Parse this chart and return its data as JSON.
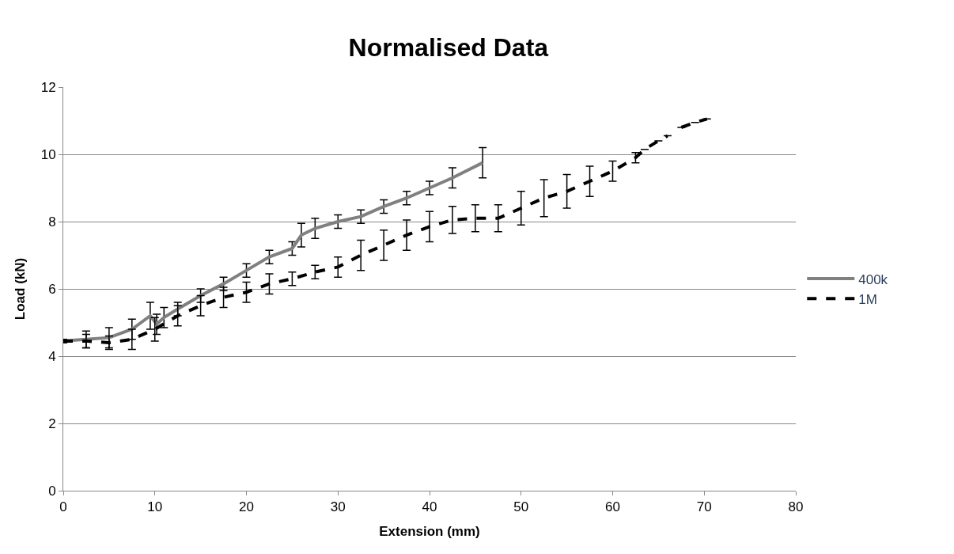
{
  "chart_data": {
    "type": "line",
    "title": "Normalised Data",
    "xlabel": "Extension (mm)",
    "ylabel": "Load (kN)",
    "xlim": [
      0,
      80
    ],
    "xticks": [
      0,
      10,
      20,
      30,
      40,
      50,
      60,
      70,
      80
    ],
    "ylim": [
      0,
      12
    ],
    "yticks": [
      0,
      2,
      4,
      6,
      8,
      10,
      12
    ],
    "grid": "y",
    "legend": "right",
    "marker": "none",
    "series": [
      {
        "name": "400k",
        "color": "#808080",
        "line_style": "solid",
        "x": [
          0,
          2.5,
          5,
          7.5,
          9.5,
          10.2,
          11,
          12.5,
          15,
          17.5,
          20,
          22.5,
          25,
          26,
          27.5,
          30,
          32.5,
          35,
          37.5,
          40,
          42.5,
          45.8
        ],
        "values": [
          4.45,
          4.5,
          4.55,
          4.8,
          5.2,
          4.95,
          5.15,
          5.4,
          5.8,
          6.15,
          6.55,
          6.95,
          7.2,
          7.6,
          7.8,
          8.0,
          8.15,
          8.45,
          8.7,
          9.0,
          9.3,
          9.75
        ],
        "errors": [
          0.05,
          0.25,
          0.3,
          0.3,
          0.4,
          0.3,
          0.3,
          0.2,
          0.2,
          0.2,
          0.2,
          0.2,
          0.2,
          0.35,
          0.3,
          0.2,
          0.2,
          0.2,
          0.2,
          0.2,
          0.3,
          0.45
        ]
      },
      {
        "name": "1M",
        "color": "#000000",
        "line_style": "dashed",
        "x": [
          0,
          2.5,
          5,
          7.5,
          10,
          12.5,
          15,
          17.5,
          20,
          22.5,
          25,
          27.5,
          30,
          32.5,
          35,
          37.5,
          40,
          42.5,
          45,
          47.5,
          50,
          52.5,
          55,
          57.5,
          60,
          62.5,
          63.5,
          65,
          66,
          66.8,
          67.5,
          69,
          70.3
        ],
        "values": [
          4.45,
          4.45,
          4.4,
          4.5,
          4.8,
          5.2,
          5.5,
          5.75,
          5.9,
          6.15,
          6.3,
          6.5,
          6.65,
          7.0,
          7.3,
          7.6,
          7.85,
          8.05,
          8.1,
          8.1,
          8.4,
          8.7,
          8.9,
          9.2,
          9.5,
          9.9,
          10.15,
          10.4,
          10.55,
          null,
          10.8,
          10.95,
          11.05
        ],
        "errors": [
          0.05,
          0.2,
          0.2,
          0.3,
          0.35,
          0.3,
          0.3,
          0.3,
          0.3,
          0.3,
          0.2,
          0.2,
          0.3,
          0.45,
          0.45,
          0.45,
          0.45,
          0.4,
          0.4,
          0.4,
          0.5,
          0.55,
          0.5,
          0.45,
          0.3,
          0.15,
          null,
          null,
          null,
          null,
          null,
          null,
          null
        ]
      }
    ]
  }
}
